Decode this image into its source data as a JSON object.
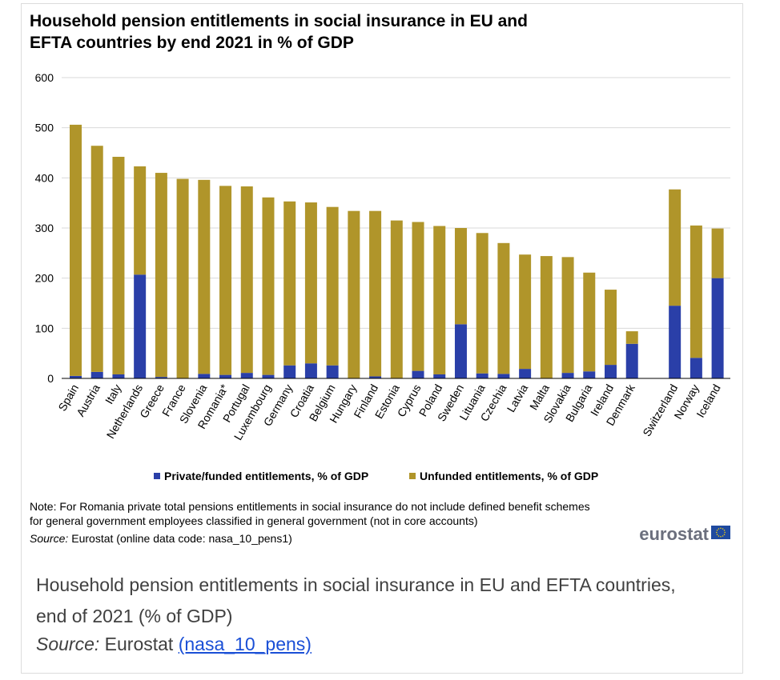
{
  "chart_data": {
    "type": "bar",
    "stacked": true,
    "title_line1": "Household pension entitlements in social insurance in EU and",
    "title_line2": "EFTA countries by end 2021 in % of GDP",
    "xlabel": "",
    "ylabel": "",
    "ylim": [
      0,
      600
    ],
    "yticks": [
      "0",
      "100",
      "200",
      "300",
      "400",
      "500",
      "600"
    ],
    "grid": true,
    "legend_position": "bottom-center",
    "categories": [
      "Spain",
      "Austria",
      "Italy",
      "Netherlands",
      "Greece",
      "France",
      "Slovenia",
      "Romania*",
      "Portugal",
      "Luxembourg",
      "Germany",
      "Croatia",
      "Belgium",
      "Hungary",
      "Finland",
      "Estonia",
      "Cyprus",
      "Poland",
      "Sweden",
      "Lituania",
      "Czechia",
      "Latvia",
      "Malta",
      "Slovakia",
      "Bulgaria",
      "Ireland",
      "Denmark",
      "Switzerland",
      "Norway",
      "Iceland"
    ],
    "series": [
      {
        "name": "Private/funded entitlements, % of GDP",
        "color": "#2a3fa8",
        "values": [
          5,
          13,
          8,
          207,
          3,
          0,
          9,
          7,
          11,
          7,
          26,
          30,
          26,
          0,
          4,
          0,
          15,
          8,
          108,
          10,
          9,
          19,
          0,
          11,
          14,
          27,
          69,
          145,
          41,
          200
        ]
      },
      {
        "name": "Unfunded entitlements, % of GDP",
        "color": "#b0952a",
        "values": [
          501,
          451,
          434,
          216,
          407,
          398,
          387,
          377,
          372,
          354,
          327,
          321,
          316,
          334,
          330,
          315,
          297,
          296,
          192,
          280,
          261,
          228,
          244,
          231,
          197,
          150,
          25,
          232,
          264,
          99
        ]
      }
    ],
    "note_line1": "Note: For Romania private total pensions entitlements in social insurance do not include defined benefit schemes",
    "note_line2": "for general government employees classified in general government (not in core accounts)",
    "source_label": "Source:",
    "source_text": "Eurostat (online data code: nasa_10_pens1)",
    "logo_text": "eurostat"
  },
  "caption": {
    "line1": "Household pension entitlements in social insurance in EU and EFTA countries,",
    "line2": "end of 2021 (% of GDP)",
    "source_label": "Source:",
    "source_text": "Eurostat",
    "link_text": "(nasa_10_pens)"
  },
  "colors": {
    "private": "#2a3fa8",
    "unfunded": "#b0952a",
    "grid": "#d9d9d9",
    "eu_flag": "#1f4aa0",
    "eu_stars": "#ffd500"
  }
}
